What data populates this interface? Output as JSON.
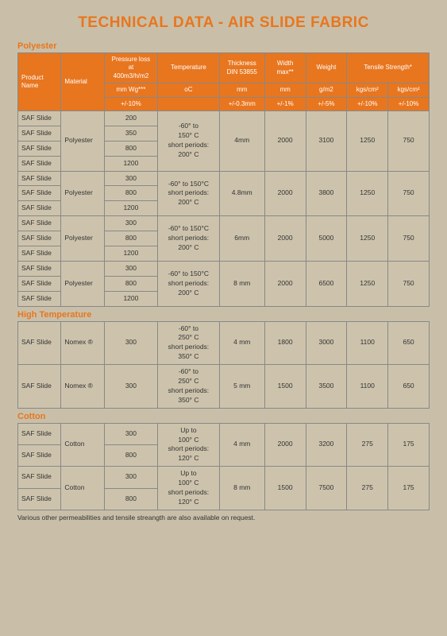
{
  "colors": {
    "title": "#e8761f",
    "section_label": "#e8761f",
    "header_bg": "#e8761f",
    "header_text": "#ffffff",
    "page_bg": "#c9bfa8",
    "cell_bg": "#cdc3ac",
    "border": "#888888",
    "body_text": "#333333"
  },
  "title": "TECHNICAL DATA - AIR SLIDE FABRIC",
  "footnote": "Various other permeabilities and tensile streangth are also available on request.",
  "header": {
    "row1": [
      "Product\nName",
      "Material",
      "Pressure loss\nat\n400m3/h/m2",
      "Temperature",
      "Thickness\nDIN 53855",
      "Width\nmax**",
      "Weight",
      "Tensile Strength*"
    ],
    "row2": [
      "mm Wg***",
      "oC",
      "mm",
      "mm",
      "g/m2",
      "kgs/cm²",
      "kgs/cm²"
    ],
    "row3": [
      "+/-10%",
      "",
      "+/-0.3mm",
      "+/-1%",
      "+/-5%",
      "+/-10%",
      "+/-10%"
    ]
  },
  "sections": [
    {
      "label": "Polyester",
      "groups": [
        {
          "rows": [
            {
              "name": "SAF Slide",
              "material": "Polyester",
              "pressure": "200",
              "temp": "-60° to",
              "thick": "4mm",
              "width": "2000",
              "weight": "3100",
              "ts1": "1250",
              "ts2": "750"
            },
            {
              "name": "SAF Slide",
              "material": "",
              "pressure": "350",
              "temp": "150° C",
              "thick": "",
              "width": "",
              "weight": "",
              "ts1": "",
              "ts2": ""
            },
            {
              "name": "SAF Slide",
              "material": "",
              "pressure": "800",
              "temp": "short periods:",
              "thick": "",
              "width": "",
              "weight": "",
              "ts1": "",
              "ts2": ""
            },
            {
              "name": "SAF Slide",
              "material": "",
              "pressure": "1200",
              "temp": "200° C",
              "thick": "",
              "width": "",
              "weight": "",
              "ts1": "",
              "ts2": ""
            }
          ],
          "merge": {
            "material": 4,
            "thick": 4,
            "width": 4,
            "weight": 4,
            "ts1": 4,
            "ts2": 4,
            "temp": 4,
            "temp_text": "-60° to\n150° C\nshort periods:\n200° C"
          }
        },
        {
          "rows": [
            {
              "name": "SAF Slide",
              "material": "Polyester",
              "pressure": "300",
              "temp": "",
              "thick": "4.8mm",
              "width": "2000",
              "weight": "3800",
              "ts1": "1250",
              "ts2": "750"
            },
            {
              "name": "SAF Slide",
              "material": "",
              "pressure": "800",
              "temp": "",
              "thick": "",
              "width": "",
              "weight": "",
              "ts1": "",
              "ts2": ""
            },
            {
              "name": "SAF Slide",
              "material": "",
              "pressure": "1200",
              "temp": "",
              "thick": "",
              "width": "",
              "weight": "",
              "ts1": "",
              "ts2": ""
            }
          ],
          "merge": {
            "material": 3,
            "thick": 3,
            "width": 3,
            "weight": 3,
            "ts1": 3,
            "ts2": 3,
            "temp": 3,
            "temp_text": "-60° to 150°C\nshort periods:\n200° C"
          }
        },
        {
          "rows": [
            {
              "name": "SAF Slide",
              "material": "Polyester",
              "pressure": "300",
              "temp": "",
              "thick": "6mm",
              "width": "2000",
              "weight": "5000",
              "ts1": "1250",
              "ts2": "750"
            },
            {
              "name": "SAF Slide",
              "material": "",
              "pressure": "800",
              "temp": "",
              "thick": "",
              "width": "",
              "weight": "",
              "ts1": "",
              "ts2": ""
            },
            {
              "name": "SAF Slide",
              "material": "",
              "pressure": "1200",
              "temp": "",
              "thick": "",
              "width": "",
              "weight": "",
              "ts1": "",
              "ts2": ""
            }
          ],
          "merge": {
            "material": 3,
            "thick": 3,
            "width": 3,
            "weight": 3,
            "ts1": 3,
            "ts2": 3,
            "temp": 3,
            "temp_text": "-60° to 150°C\nshort periods:\n200° C"
          }
        },
        {
          "rows": [
            {
              "name": "SAF Slide",
              "material": "Polyester",
              "pressure": "300",
              "temp": "",
              "thick": "8 mm",
              "width": "2000",
              "weight": "6500",
              "ts1": "1250",
              "ts2": "750"
            },
            {
              "name": "SAF Slide",
              "material": "",
              "pressure": "800",
              "temp": "",
              "thick": "",
              "width": "",
              "weight": "",
              "ts1": "",
              "ts2": ""
            },
            {
              "name": "SAF Slide",
              "material": "",
              "pressure": "1200",
              "temp": "",
              "thick": "",
              "width": "",
              "weight": "",
              "ts1": "",
              "ts2": ""
            }
          ],
          "merge": {
            "material": 3,
            "thick": 3,
            "width": 3,
            "weight": 3,
            "ts1": 3,
            "ts2": 3,
            "temp": 3,
            "temp_text": "-60° to 150°C\nshort periods:\n200° C"
          }
        }
      ]
    },
    {
      "label": "High Temperature",
      "groups": [
        {
          "rows": [
            {
              "name": "SAF Slide",
              "material": "Nomex ®",
              "pressure": "300",
              "temp": "",
              "thick": "4 mm",
              "width": "1800",
              "weight": "3000",
              "ts1": "1100",
              "ts2": "650"
            }
          ],
          "merge": {
            "material": 1,
            "thick": 1,
            "width": 1,
            "weight": 1,
            "ts1": 1,
            "ts2": 1,
            "temp": 1,
            "temp_text": "-60° to\n250° C\nshort periods:\n350° C"
          }
        },
        {
          "rows": [
            {
              "name": "SAF Slide",
              "material": "Nomex ®",
              "pressure": "300",
              "temp": "",
              "thick": "5 mm",
              "width": "1500",
              "weight": "3500",
              "ts1": "1100",
              "ts2": "650"
            }
          ],
          "merge": {
            "material": 1,
            "thick": 1,
            "width": 1,
            "weight": 1,
            "ts1": 1,
            "ts2": 1,
            "temp": 1,
            "temp_text": "-60° to\n250° C\nshort periods:\n350° C"
          }
        }
      ]
    },
    {
      "label": "Cotton",
      "groups": [
        {
          "rows": [
            {
              "name": "SAF Slide",
              "material": "Cotton",
              "pressure": "300",
              "temp": "",
              "thick": "4 mm",
              "width": "2000",
              "weight": "3200",
              "ts1": "275",
              "ts2": "175"
            },
            {
              "name": "SAF Slide",
              "material": "",
              "pressure": "800",
              "temp": "",
              "thick": "",
              "width": "",
              "weight": "",
              "ts1": "",
              "ts2": ""
            }
          ],
          "merge": {
            "material": 2,
            "thick": 2,
            "width": 2,
            "weight": 2,
            "ts1": 2,
            "ts2": 2,
            "temp": 2,
            "temp_text": "Up to\n100° C\nshort periods:\n120° C"
          }
        },
        {
          "rows": [
            {
              "name": "SAF Slide",
              "material": "Cotton",
              "pressure": "300",
              "temp": "",
              "thick": "8 mm",
              "width": "1500",
              "weight": "7500",
              "ts1": "275",
              "ts2": "175"
            },
            {
              "name": "SAF Slide",
              "material": "",
              "pressure": "800",
              "temp": "",
              "thick": "",
              "width": "",
              "weight": "",
              "ts1": "",
              "ts2": ""
            }
          ],
          "merge": {
            "material": 2,
            "thick": 2,
            "width": 2,
            "weight": 2,
            "ts1": 2,
            "ts2": 2,
            "temp": 2,
            "temp_text": "Up to\n100° C\nshort periods:\n120° C"
          }
        }
      ]
    }
  ]
}
